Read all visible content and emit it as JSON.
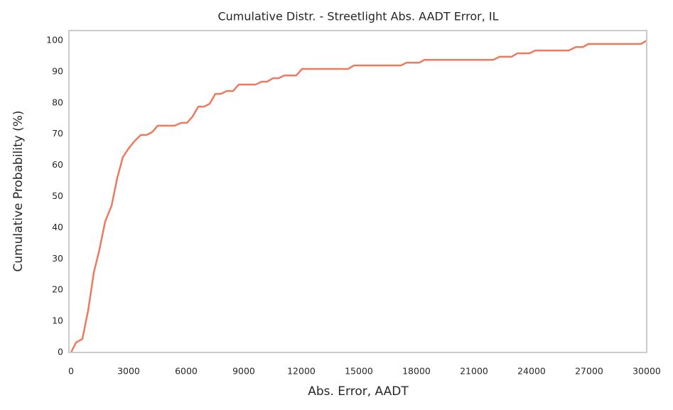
{
  "chart_data": {
    "type": "line",
    "title": "Cumulative Distr. - Streetlight Abs. AADT Error, IL",
    "xlabel": "Abs. Error, AADT",
    "ylabel": "Cumulative Probability (%)",
    "xlim": [
      -110,
      30000
    ],
    "ylim": [
      0,
      103.2
    ],
    "xticks": [
      0,
      3000,
      6000,
      9000,
      12000,
      15000,
      18000,
      21000,
      24000,
      27000,
      30000
    ],
    "yticks": [
      0,
      10,
      20,
      30,
      40,
      50,
      60,
      70,
      80,
      90,
      100
    ],
    "grid": false,
    "series": [
      {
        "name": "Streetlight Abs. AADT Error, IL",
        "color": "#ee7a5e",
        "x": [
          0,
          260,
          590,
          890,
          1190,
          1480,
          1780,
          2110,
          2410,
          2700,
          3000,
          3300,
          3630,
          3930,
          4220,
          4520,
          5400,
          5740,
          6040,
          6330,
          6630,
          6930,
          7220,
          7520,
          7810,
          8110,
          8440,
          8740,
          9630,
          9930,
          10220,
          10520,
          10810,
          11110,
          11740,
          12040,
          14440,
          14740,
          17190,
          17480,
          18150,
          18410,
          22000,
          22330,
          22960,
          23260,
          23890,
          24190,
          25930,
          26300,
          26670,
          26960,
          29700,
          30000
        ],
        "values": [
          0,
          3.2,
          4.3,
          13.4,
          25.7,
          33,
          42,
          47,
          56,
          62.6,
          65.4,
          67.7,
          69.7,
          69.7,
          70.6,
          72.7,
          72.7,
          73.6,
          73.6,
          75.6,
          78.8,
          78.8,
          79.7,
          82.9,
          82.9,
          83.8,
          83.8,
          85.9,
          85.9,
          86.8,
          86.8,
          87.9,
          87.9,
          88.8,
          88.8,
          90.9,
          90.9,
          92,
          92,
          92.9,
          92.9,
          93.8,
          93.8,
          94.8,
          94.8,
          95.9,
          95.9,
          96.8,
          96.8,
          97.9,
          97.9,
          98.9,
          98.9,
          100
        ]
      }
    ]
  }
}
